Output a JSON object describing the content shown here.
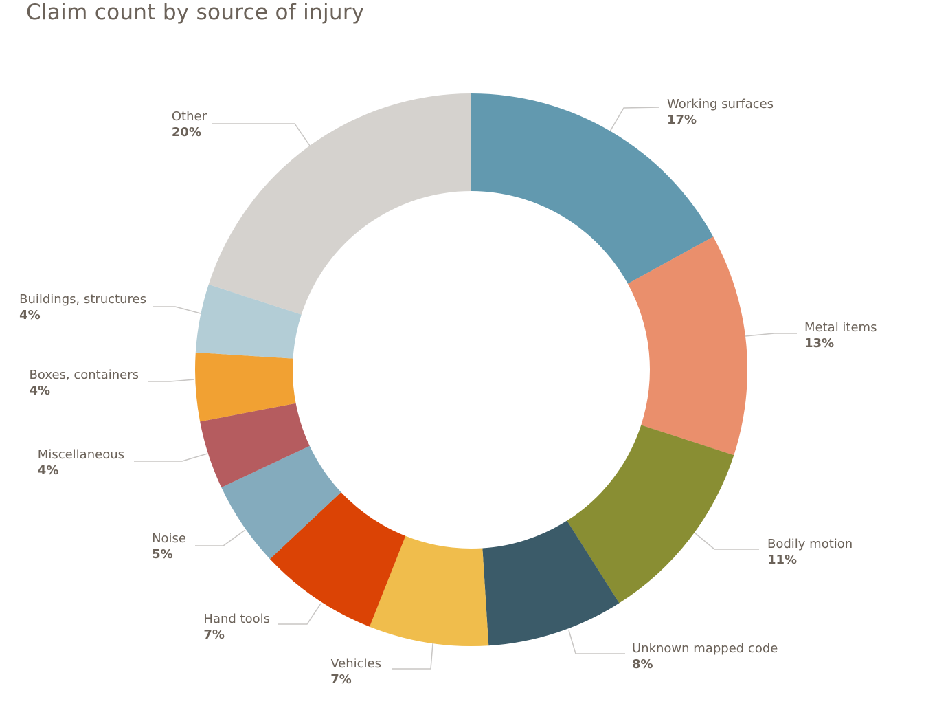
{
  "chart_data": {
    "type": "pie",
    "title": "Claim count by source of injury",
    "slices": [
      {
        "label": "Working surfaces",
        "value": 17,
        "pct_label": "17%",
        "color": "#6299af"
      },
      {
        "label": "Metal items",
        "value": 13,
        "pct_label": "13%",
        "color": "#ea8f6c"
      },
      {
        "label": "Bodily motion",
        "value": 11,
        "pct_label": "11%",
        "color": "#898e33"
      },
      {
        "label": "Unknown mapped code",
        "value": 8,
        "pct_label": "8%",
        "color": "#3b5b69"
      },
      {
        "label": "Vehicles",
        "value": 7,
        "pct_label": "7%",
        "color": "#f0bd4c"
      },
      {
        "label": "Hand tools",
        "value": 7,
        "pct_label": "7%",
        "color": "#db4305"
      },
      {
        "label": "Noise",
        "value": 5,
        "pct_label": "5%",
        "color": "#84abbd"
      },
      {
        "label": "Miscellaneous",
        "value": 4,
        "pct_label": "4%",
        "color": "#b55c5f"
      },
      {
        "label": "Boxes, containers",
        "value": 4,
        "pct_label": "4%",
        "color": "#f1a133"
      },
      {
        "label": "Buildings, structures",
        "value": 4,
        "pct_label": "4%",
        "color": "#b3cdd6"
      },
      {
        "label": "Other",
        "value": 20,
        "pct_label": "20%",
        "color": "#d5d2ce"
      }
    ]
  }
}
